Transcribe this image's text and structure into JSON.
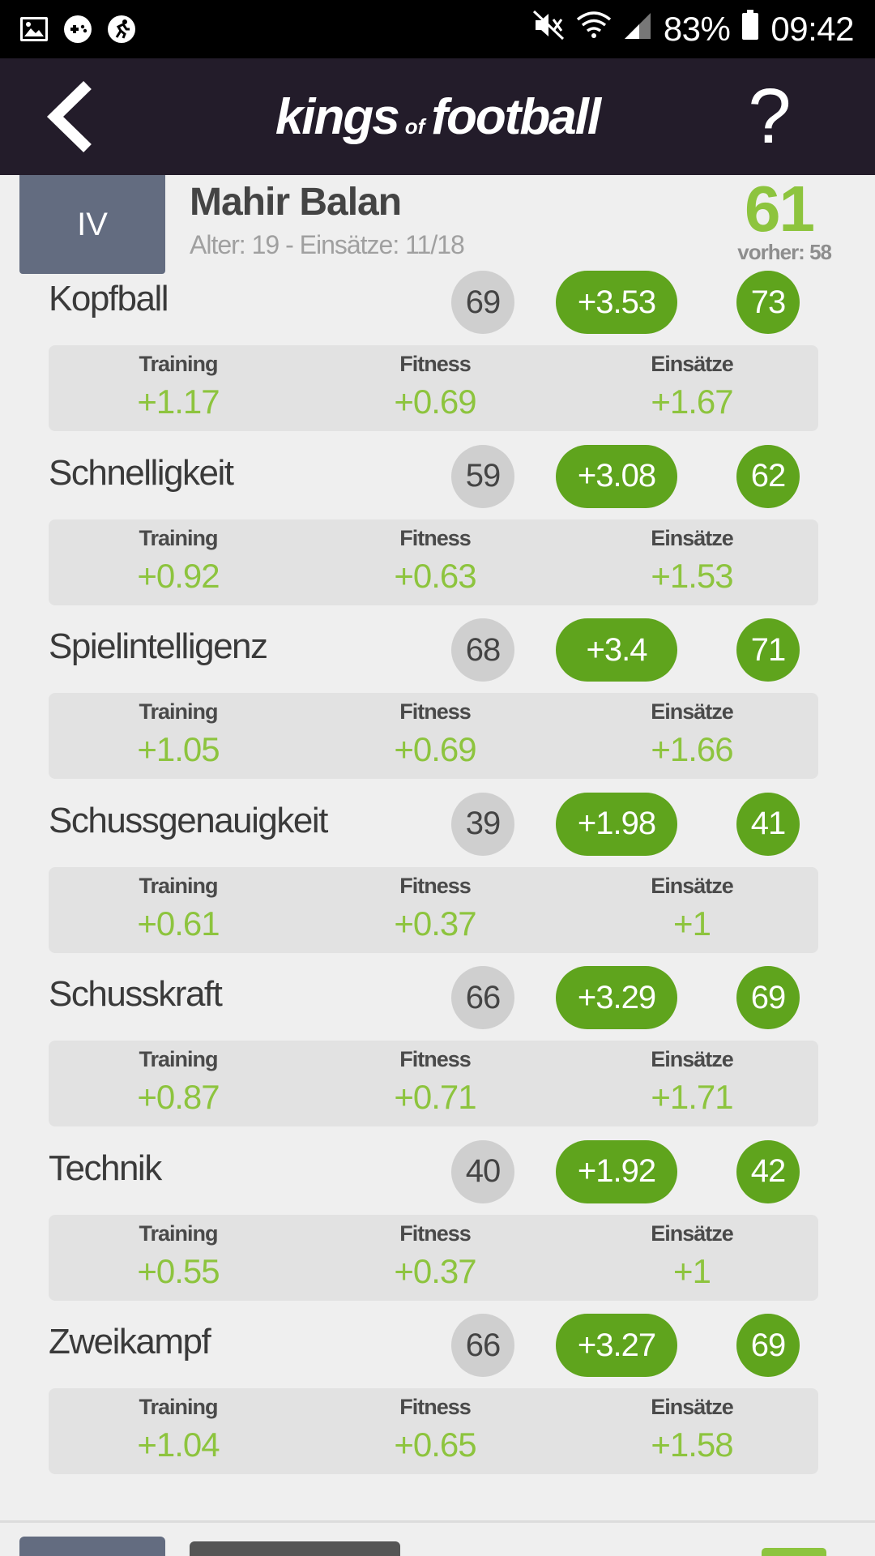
{
  "status_bar": {
    "battery": "83%",
    "time": "09:42",
    "icons": [
      "image-icon",
      "game-icon",
      "run-icon",
      "mute-icon",
      "wifi-icon",
      "signal-icon",
      "battery-icon"
    ]
  },
  "app_bar": {
    "logo_left": "kings",
    "logo_mid": "of",
    "logo_right": "football",
    "help": "?"
  },
  "player": {
    "position": "IV",
    "name": "Mahir Balan",
    "meta": "Alter: 19 - Einsätze: 11/18",
    "rating": "61",
    "previous": "vorher: 58"
  },
  "attributes": [
    {
      "name": "Kopfball",
      "current": "69",
      "delta": "+3.53",
      "new": "73",
      "training": "+1.17",
      "fitness": "+0.69",
      "einsaetze": "+1.67"
    },
    {
      "name": "Schnelligkeit",
      "current": "59",
      "delta": "+3.08",
      "new": "62",
      "training": "+0.92",
      "fitness": "+0.63",
      "einsaetze": "+1.53"
    },
    {
      "name": "Spielintelligenz",
      "current": "68",
      "delta": "+3.4",
      "new": "71",
      "training": "+1.05",
      "fitness": "+0.69",
      "einsaetze": "+1.66"
    },
    {
      "name": "Schussgenauigkeit",
      "current": "39",
      "delta": "+1.98",
      "new": "41",
      "training": "+0.61",
      "fitness": "+0.37",
      "einsaetze": "+1"
    },
    {
      "name": "Schusskraft",
      "current": "66",
      "delta": "+3.29",
      "new": "69",
      "training": "+0.87",
      "fitness": "+0.71",
      "einsaetze": "+1.71"
    },
    {
      "name": "Technik",
      "current": "40",
      "delta": "+1.92",
      "new": "42",
      "training": "+0.55",
      "fitness": "+0.37",
      "einsaetze": "+1"
    },
    {
      "name": "Zweikampf",
      "current": "66",
      "delta": "+3.27",
      "new": "69",
      "training": "+1.04",
      "fitness": "+0.65",
      "einsaetze": "+1.58"
    }
  ],
  "labels": {
    "training": "Training",
    "fitness": "Fitness",
    "einsaetze": "Einsätze"
  },
  "colors": {
    "accent_green": "#5fa41d",
    "value_green": "#8dc43e",
    "appbar": "#231c2a",
    "position_box": "#636c80"
  }
}
